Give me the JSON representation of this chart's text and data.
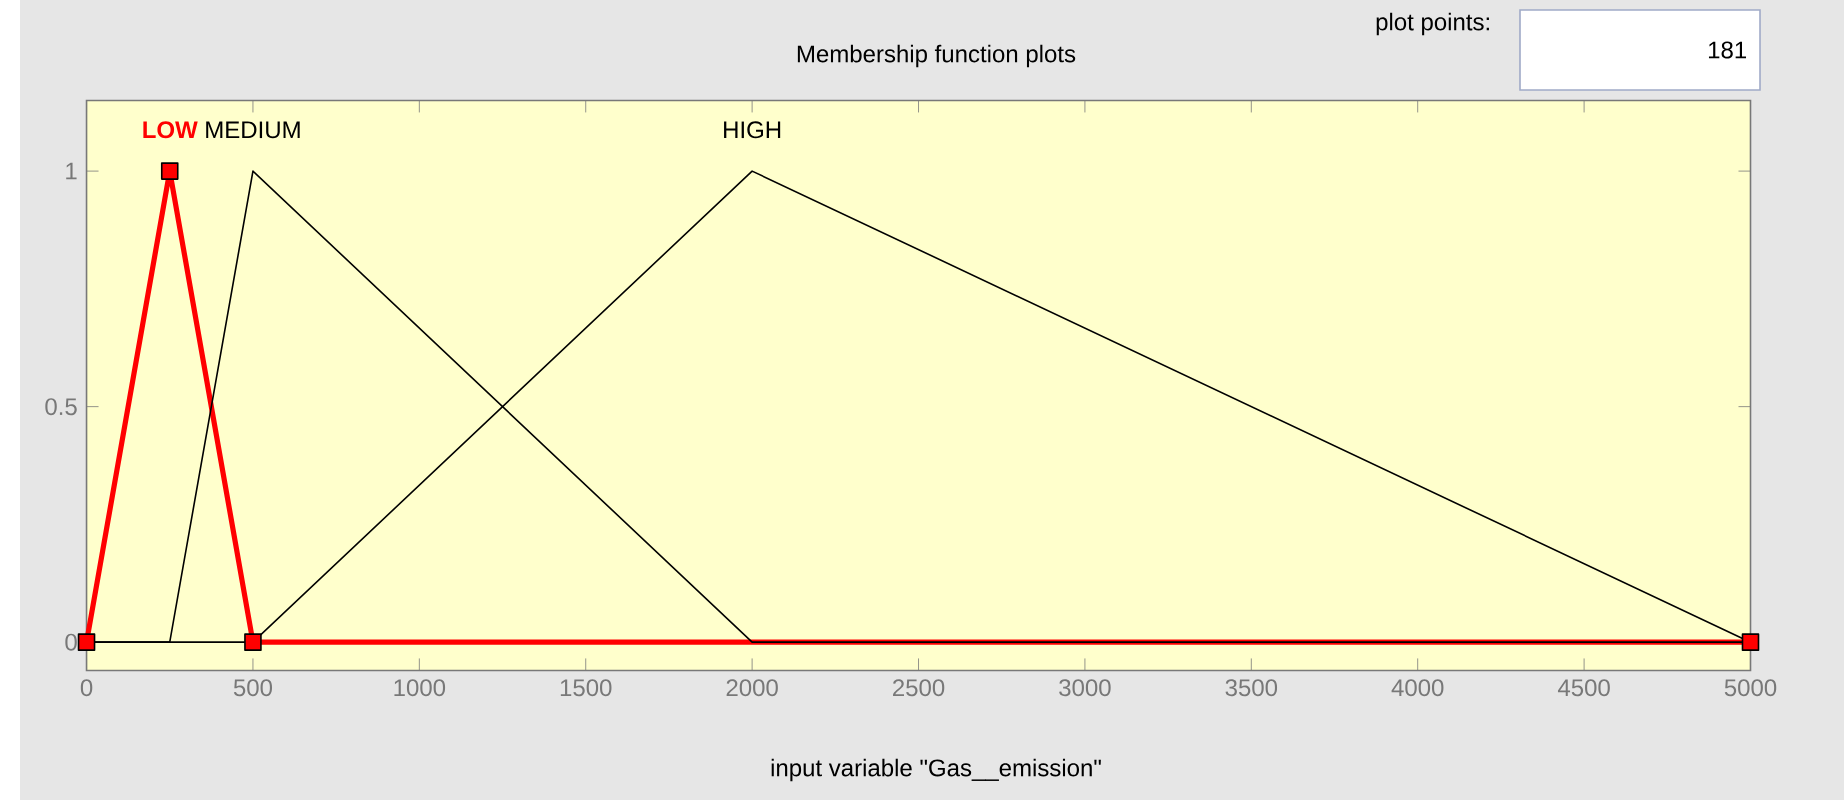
{
  "chart_data": {
    "type": "line",
    "title": "Membership function plots",
    "xlabel": "input variable \"Gas__emission\"",
    "annotations": [
      "plot points:",
      "181"
    ],
    "xlim": [
      0,
      5000
    ],
    "xticks": [
      0,
      500,
      1000,
      1500,
      2000,
      2500,
      3000,
      3500,
      4000,
      4500,
      5000
    ],
    "ylim": [
      -0.06,
      1.15
    ],
    "yticks": [
      0,
      0.5,
      1
    ],
    "grid": false,
    "series": [
      {
        "name": "LOW",
        "color": "#ff0000",
        "marker": "square",
        "x": [
          0,
          250,
          500,
          5000
        ],
        "values": [
          0,
          1,
          0,
          0
        ]
      },
      {
        "name": "MEDIUM",
        "color": "#000000",
        "marker": "none",
        "x": [
          0,
          250,
          500,
          2000,
          5000
        ],
        "values": [
          0,
          0,
          1,
          0,
          0
        ]
      },
      {
        "name": "HIGH",
        "color": "#000000",
        "marker": "none",
        "x": [
          0,
          500,
          2000,
          5000
        ],
        "values": [
          0,
          0,
          1,
          0
        ]
      }
    ]
  }
}
